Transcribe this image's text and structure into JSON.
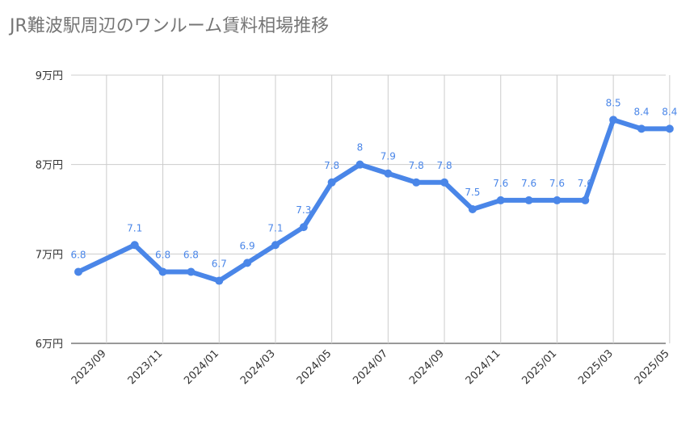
{
  "chart_data": {
    "type": "line",
    "title": "JR難波駅周辺のワンルーム賃料相場推移",
    "xlabel": "",
    "ylabel": "",
    "ylim": [
      6,
      9
    ],
    "y_ticks": [
      {
        "value": 6,
        "label": "6万円"
      },
      {
        "value": 7,
        "label": "7万円"
      },
      {
        "value": 8,
        "label": "8万円"
      },
      {
        "value": 9,
        "label": "9万円"
      }
    ],
    "x_tick_labels": [
      "2023/09",
      "2023/11",
      "2024/01",
      "2024/03",
      "2024/05",
      "2024/07",
      "2024/09",
      "2024/11",
      "2025/01",
      "2025/03",
      "2025/05"
    ],
    "grid": true,
    "legend": "none",
    "color": "#4a86e8",
    "series": [
      {
        "x": [
          "2023/08",
          "2023/10",
          "2023/11",
          "2023/12",
          "2024/01",
          "2024/02",
          "2024/03",
          "2024/04",
          "2024/05",
          "2024/06",
          "2024/07",
          "2024/08",
          "2024/09",
          "2024/10",
          "2024/11",
          "2024/12",
          "2025/01",
          "2025/02",
          "2025/03",
          "2025/04",
          "2025/05"
        ],
        "values": [
          6.8,
          7.1,
          6.8,
          6.8,
          6.7,
          6.9,
          7.1,
          7.3,
          7.8,
          8,
          7.9,
          7.8,
          7.8,
          7.5,
          7.6,
          7.6,
          7.6,
          7.6,
          8.5,
          8.4,
          8.4
        ],
        "labels": [
          "6.8",
          "7.1",
          "6.8",
          "6.8",
          "6.7",
          "6.9",
          "7.1",
          "7.3",
          "7.8",
          "8",
          "7.9",
          "7.8",
          "7.8",
          "7.5",
          "7.6",
          "7.6",
          "7.6",
          "7.6",
          "8.5",
          "8.4",
          "8.4"
        ]
      }
    ]
  }
}
